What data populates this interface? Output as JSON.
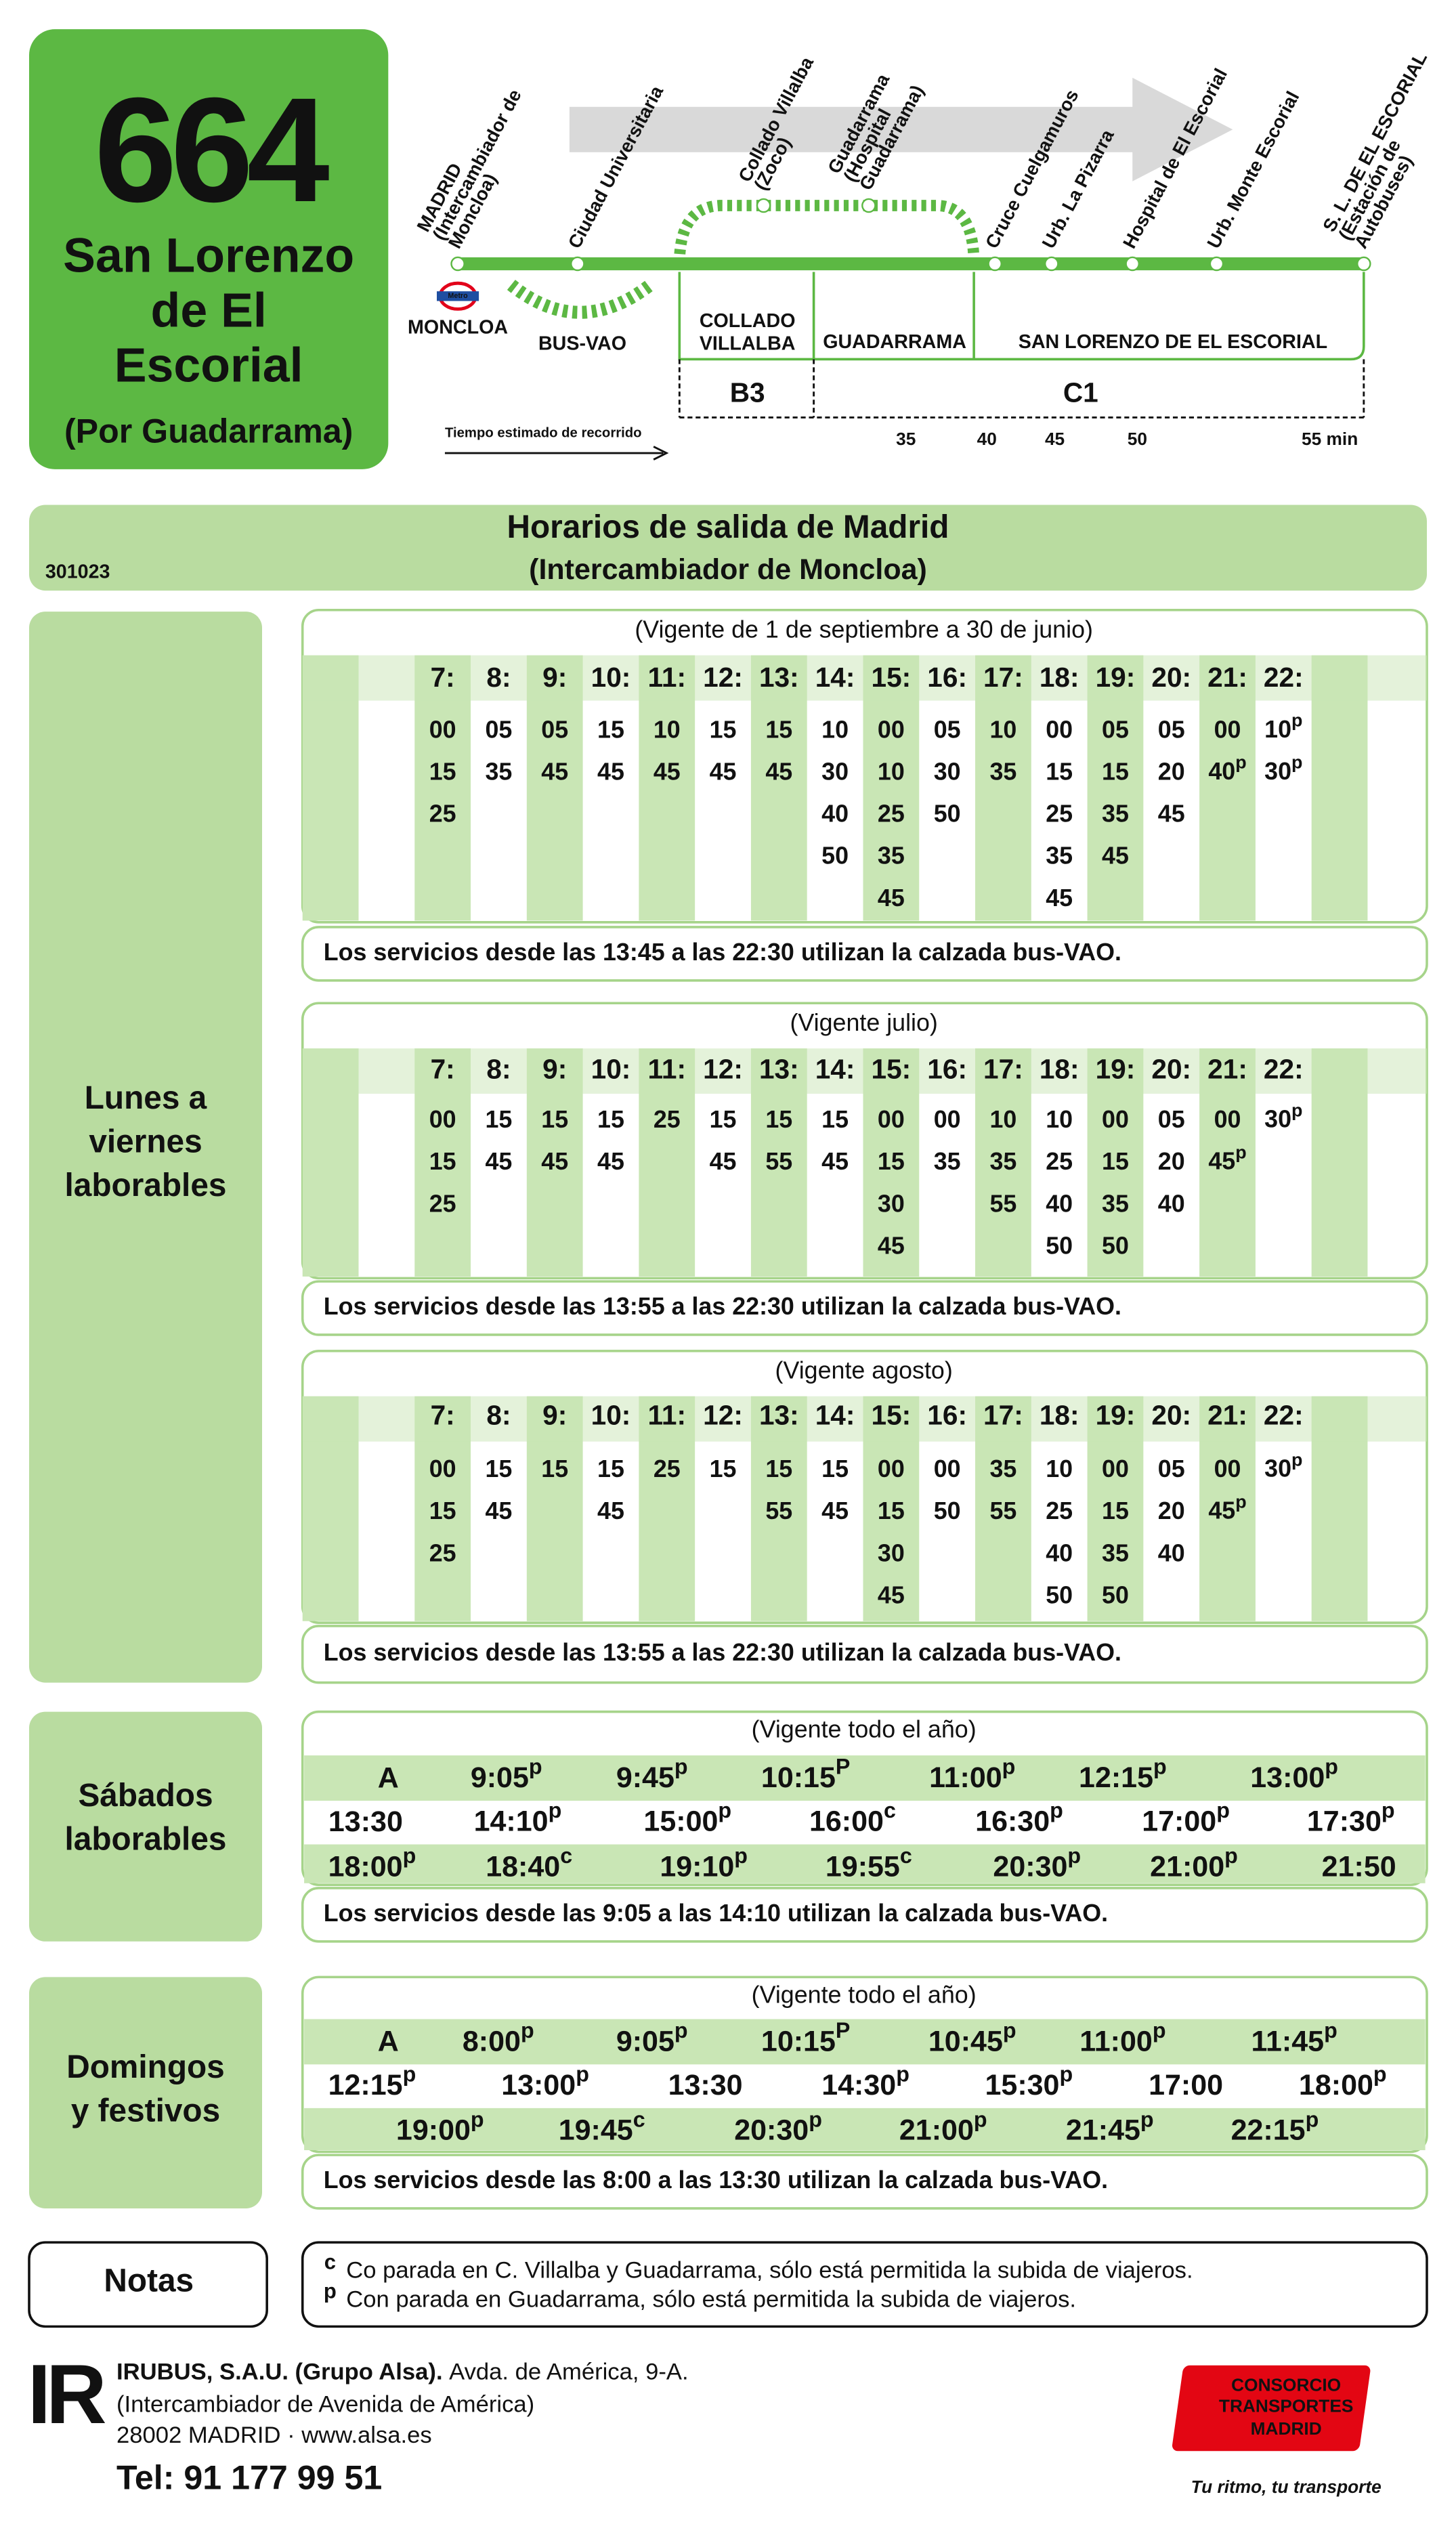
{
  "header": {
    "route": "664",
    "destination": [
      "San Lorenzo",
      "de El",
      "Escorial"
    ],
    "via": "(Por Guadarrama)"
  },
  "route_map": {
    "stops": [
      [
        "MADRID",
        "(Intercambiador de",
        "Moncloa)"
      ],
      [
        "Ciudad Universitaria"
      ],
      [
        "Collado Villalba",
        "(Zoco)"
      ],
      [
        "Guadarrama",
        "(Hospital",
        "Guadarrama)"
      ],
      [
        "Cruce Cuelgamuros"
      ],
      [
        "Urb. La Pizarra"
      ],
      [
        "Hospital de El Escorial"
      ],
      [
        "Urb. Monte Escorial"
      ],
      [
        "S. L. DE EL ESCORIAL",
        "(Estación de",
        "Autobuses)"
      ]
    ],
    "metro_logo": "Metro",
    "origin": "MONCLOA",
    "bus_vao": "BUS-VAO",
    "zones": [
      [
        "COLLADO",
        "VILLALBA"
      ],
      [
        "GUADARRAMA"
      ],
      [
        "SAN LORENZO DE EL ESCORIAL"
      ]
    ],
    "fares": [
      "B3",
      "C1"
    ],
    "time_label": "Tiempo estimado de recorrido",
    "times": [
      "35",
      "40",
      "45",
      "50",
      "55 min"
    ]
  },
  "schedule": {
    "title": "Horarios de salida de Madrid",
    "subtitle": "(Intercambiador de Moncloa)",
    "code": "301023"
  },
  "weekdays": {
    "label": [
      "Lunes a",
      "viernes",
      "laborables"
    ],
    "tables": [
      {
        "period": "(Vigente de 1 de septiembre a 30 de junio)",
        "hours": [
          "7:",
          "8:",
          "9:",
          "10:",
          "11:",
          "12:",
          "13:",
          "14:",
          "15:",
          "16:",
          "17:",
          "18:",
          "19:",
          "20:",
          "21:",
          "22:"
        ],
        "minutes": [
          [
            "00",
            "15",
            "25"
          ],
          [
            "05",
            "35"
          ],
          [
            "05",
            "45"
          ],
          [
            "15",
            "45"
          ],
          [
            "10",
            "45"
          ],
          [
            "15",
            "45"
          ],
          [
            "15",
            "45"
          ],
          [
            "10",
            "30",
            "40",
            "50"
          ],
          [
            "00",
            "10",
            "25",
            "35",
            "45"
          ],
          [
            "05",
            "30",
            "50"
          ],
          [
            "10",
            "35"
          ],
          [
            "00",
            "15",
            "25",
            "35",
            "45"
          ],
          [
            "05",
            "15",
            "35",
            "45"
          ],
          [
            "05",
            "20",
            "45"
          ],
          [
            "00",
            {
              "text": "40",
              "sup": "p"
            }
          ],
          [
            {
              "text": "10",
              "sup": "p"
            },
            {
              "text": "30",
              "sup": "p"
            }
          ]
        ],
        "note": "Los servicios desde las 13:45 a las 22:30 utilizan la calzada bus-VAO."
      },
      {
        "period": "(Vigente julio)",
        "hours": [
          "7:",
          "8:",
          "9:",
          "10:",
          "11:",
          "12:",
          "13:",
          "14:",
          "15:",
          "16:",
          "17:",
          "18:",
          "19:",
          "20:",
          "21:",
          "22:"
        ],
        "minutes": [
          [
            "00",
            "15",
            "25"
          ],
          [
            "15",
            "45"
          ],
          [
            "15",
            "45"
          ],
          [
            "15",
            "45"
          ],
          [
            "25"
          ],
          [
            "15",
            "45"
          ],
          [
            "15",
            "55"
          ],
          [
            "15",
            "45"
          ],
          [
            "00",
            "15",
            "30",
            "45"
          ],
          [
            "00",
            "35"
          ],
          [
            "10",
            "35",
            "55"
          ],
          [
            "10",
            "25",
            "40",
            "50"
          ],
          [
            "00",
            "15",
            "35",
            "50"
          ],
          [
            "05",
            "20",
            "40"
          ],
          [
            "00",
            {
              "text": "45",
              "sup": "p"
            }
          ],
          [
            {
              "text": "30",
              "sup": "p"
            }
          ]
        ],
        "note": "Los servicios desde las 13:55 a las 22:30 utilizan la calzada bus-VAO."
      },
      {
        "period": "(Vigente agosto)",
        "hours": [
          "7:",
          "8:",
          "9:",
          "10:",
          "11:",
          "12:",
          "13:",
          "14:",
          "15:",
          "16:",
          "17:",
          "18:",
          "19:",
          "20:",
          "21:",
          "22:"
        ],
        "minutes": [
          [
            "00",
            "15",
            "25"
          ],
          [
            "15",
            "45"
          ],
          [
            "15"
          ],
          [
            "15",
            "45"
          ],
          [
            "25"
          ],
          [
            "15"
          ],
          [
            "15",
            "55"
          ],
          [
            "15",
            "45"
          ],
          [
            "00",
            "15",
            "30",
            "45"
          ],
          [
            "00",
            "50"
          ],
          [
            "35",
            "55"
          ],
          [
            "10",
            "25",
            "40",
            "50"
          ],
          [
            "00",
            "15",
            "35",
            "50"
          ],
          [
            "05",
            "20",
            "40"
          ],
          [
            "00",
            {
              "text": "45",
              "sup": "p"
            }
          ],
          [
            {
              "text": "30",
              "sup": "p"
            }
          ]
        ],
        "note": "Los servicios desde las 13:55 a las 22:30 utilizan la calzada bus-VAO."
      }
    ]
  },
  "saturdays": {
    "label": [
      "Sábados",
      "laborables"
    ],
    "period": "(Vigente todo el año)",
    "rows": [
      [
        "A",
        {
          "text": "9:05",
          "sup": "p"
        },
        {
          "text": "9:45",
          "sup": "p"
        },
        {
          "text": "10:15",
          "sup": "P"
        },
        {
          "text": "11:00",
          "sup": "p"
        },
        {
          "text": "12:15",
          "sup": "p"
        },
        {
          "text": "13:00",
          "sup": "p"
        }
      ],
      [
        "13:30",
        {
          "text": "14:10",
          "sup": "p"
        },
        {
          "text": "15:00",
          "sup": "p"
        },
        {
          "text": "16:00",
          "sup": "c"
        },
        {
          "text": "16:30",
          "sup": "p"
        },
        {
          "text": "17:00",
          "sup": "p"
        },
        {
          "text": "17:30",
          "sup": "p"
        }
      ],
      [
        {
          "text": "18:00",
          "sup": "p"
        },
        {
          "text": "18:40",
          "sup": "c"
        },
        {
          "text": "19:10",
          "sup": "p"
        },
        {
          "text": "19:55",
          "sup": "c"
        },
        {
          "text": "20:30",
          "sup": "p"
        },
        {
          "text": "21:00",
          "sup": "p"
        },
        "21:50"
      ]
    ],
    "note": "Los servicios desde las 9:05 a las 14:10 utilizan la calzada bus-VAO."
  },
  "sundays": {
    "label": [
      "Domingos",
      "y festivos"
    ],
    "period": "(Vigente todo el año)",
    "rows": [
      [
        "A",
        {
          "text": "8:00",
          "sup": "p"
        },
        {
          "text": "9:05",
          "sup": "p"
        },
        {
          "text": "10:15",
          "sup": "P"
        },
        {
          "text": "10:45",
          "sup": "p"
        },
        {
          "text": "11:00",
          "sup": "p"
        },
        {
          "text": "11:45",
          "sup": "p"
        }
      ],
      [
        {
          "text": "12:15",
          "sup": "p"
        },
        {
          "text": "13:00",
          "sup": "p"
        },
        "13:30",
        {
          "text": "14:30",
          "sup": "p"
        },
        {
          "text": "15:30",
          "sup": "p"
        },
        "17:00",
        {
          "text": "18:00",
          "sup": "p"
        }
      ],
      [
        {
          "text": "19:00",
          "sup": "p"
        },
        {
          "text": "19:45",
          "sup": "c"
        },
        {
          "text": "20:30",
          "sup": "p"
        },
        {
          "text": "21:00",
          "sup": "p"
        },
        {
          "text": "21:45",
          "sup": "p"
        },
        {
          "text": "22:15",
          "sup": "p"
        }
      ]
    ],
    "note": "Los servicios desde las 8:00 a las 13:30 utilizan la calzada bus-VAO."
  },
  "notes": {
    "label": "Notas",
    "items": [
      {
        "mark": "c",
        "text": "Co parada en C. Villalba y Guadarrama, sólo está permitida la subida de viajeros."
      },
      {
        "mark": "p",
        "text": "Con parada en Guadarrama, sólo está permitida la subida de viajeros."
      }
    ]
  },
  "footer": {
    "logo": "IR",
    "company": "IRUBUS, S.A.U. (Grupo Alsa).",
    "address": "Avda. de América, 9-A.",
    "address2": "(Intercambiador de Avenida de América)",
    "address3": "28002 MADRID · www.alsa.es",
    "phone": "Tel: 91 177 99 51",
    "consorcio": [
      "CONSORCIO",
      "TRANSPORTES",
      "MADRID"
    ],
    "tagline": "Tu ritmo, tu transporte"
  }
}
